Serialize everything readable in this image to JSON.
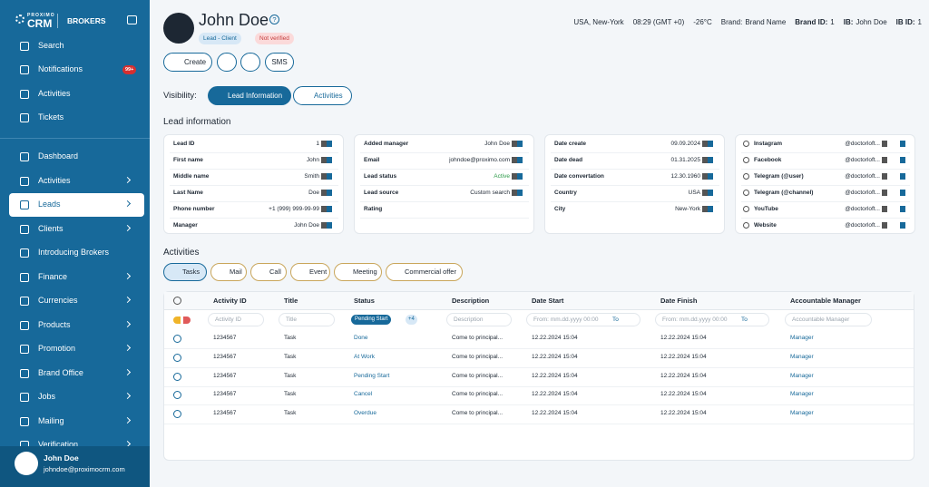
{
  "sidebar": {
    "logo_top": "PROXIMO",
    "logo": "CRM",
    "section": "BROKERS",
    "top_menu": [
      {
        "label": "Search"
      },
      {
        "label": "Notifications",
        "badge": "99+"
      },
      {
        "label": "Activities"
      },
      {
        "label": "Tickets"
      }
    ],
    "menu": [
      {
        "label": "Dashboard",
        "submenu": false
      },
      {
        "label": "Activities",
        "submenu": true
      },
      {
        "label": "Leads",
        "submenu": true,
        "active": true
      },
      {
        "label": "Clients",
        "submenu": true
      },
      {
        "label": "Introducing Brokers",
        "submenu": false
      },
      {
        "label": "Finance",
        "submenu": true
      },
      {
        "label": "Currencies",
        "submenu": true
      },
      {
        "label": "Products",
        "submenu": true
      },
      {
        "label": "Promotion",
        "submenu": true
      },
      {
        "label": "Brand Office",
        "submenu": true
      },
      {
        "label": "Jobs",
        "submenu": true
      },
      {
        "label": "Mailing",
        "submenu": true
      },
      {
        "label": "Verification",
        "submenu": true
      }
    ],
    "user": {
      "name": "John Doe",
      "email": "johndoe@proximocrm.com"
    }
  },
  "header": {
    "name": "John Doe",
    "help": "?",
    "tags": [
      "Lead - Client",
      "Not verified"
    ],
    "info": [
      {
        "value": "USA, New-York"
      },
      {
        "value": "08:29 (GMT +0)"
      },
      {
        "value": "-26°C"
      },
      {
        "label": "Brand:",
        "value": "Brand Name"
      },
      {
        "label": "Brand ID:",
        "value": "1"
      },
      {
        "label": "IB:",
        "value": "John Doe"
      },
      {
        "label": "IB ID:",
        "value": "1"
      }
    ],
    "buttons": [
      "Create",
      "SMS"
    ],
    "visibility_label": "Visibility:",
    "tabs": [
      "Lead Information",
      "Activities"
    ]
  },
  "lead_information": {
    "title": "Lead information",
    "cards": [
      [
        [
          "Lead ID",
          "1"
        ],
        [
          "First name",
          "John"
        ],
        [
          "Middle name",
          "Smith"
        ],
        [
          "Last Name",
          "Doe"
        ],
        [
          "Phone number",
          "+1 (999) 999-99-99"
        ],
        [
          "Manager",
          "John Doe"
        ]
      ],
      [
        [
          "Added manager",
          "John Doe"
        ],
        [
          "Email",
          "johndoe@proximo.com"
        ],
        [
          "Lead status",
          "Active"
        ],
        [
          "Lead source",
          "Custom search"
        ],
        [
          "Rating",
          ""
        ]
      ],
      [
        [
          "Date create",
          "09.09.2024"
        ],
        [
          "Date dead",
          "01.31.2025"
        ],
        [
          "Date convertation",
          "12.30.1960"
        ],
        [
          "Country",
          "USA"
        ],
        [
          "City",
          "New-York"
        ]
      ],
      [
        [
          "Instagram",
          "@doctorloft..."
        ],
        [
          "Facebook",
          "@doctorloft..."
        ],
        [
          "Telegram (@user)",
          "@doctorloft..."
        ],
        [
          "Telegram (@channel)",
          "@doctorloft..."
        ],
        [
          "YouTube",
          "@doctorloft..."
        ],
        [
          "Website",
          "@doctorloft..."
        ]
      ]
    ]
  },
  "activities": {
    "title": "Activities",
    "filters": [
      "Tasks",
      "Mail",
      "Call",
      "Event",
      "Meeting",
      "Commercial offer"
    ],
    "columns": [
      "Activity ID",
      "Title",
      "Status",
      "Description",
      "Date Start",
      "Date Finish",
      "Accountable Manager"
    ],
    "filter_row": {
      "activity_id": "Activity ID",
      "title": "Title",
      "status": "Pending Start",
      "status_more": "+4",
      "description": "Description",
      "date_start": "From: mm.dd.yyyy 00:00",
      "date_start_to": "To",
      "date_finish": "From: mm.dd.yyyy 00:00",
      "date_finish_to": "To",
      "manager": "Accountable Manager"
    },
    "rows": [
      [
        "1234567",
        "Task",
        "Done",
        "Come to principal...",
        "12.22.2024 15:04",
        "12.22.2024 15:04",
        "Manager"
      ],
      [
        "1234567",
        "Task",
        "At Work",
        "Come to principal...",
        "12.22.2024 15:04",
        "12.22.2024 15:04",
        "Manager"
      ],
      [
        "1234567",
        "Task",
        "Pending Start",
        "Come to principal...",
        "12.22.2024 15:04",
        "12.22.2024 15:04",
        "Manager"
      ],
      [
        "1234567",
        "Task",
        "Cancel",
        "Come to principal...",
        "12.22.2024 15:04",
        "12.22.2024 15:04",
        "Manager"
      ],
      [
        "1234567",
        "Task",
        "Overdue",
        "Come to principal...",
        "12.22.2024 15:04",
        "12.22.2024 15:04",
        "Manager"
      ]
    ]
  }
}
